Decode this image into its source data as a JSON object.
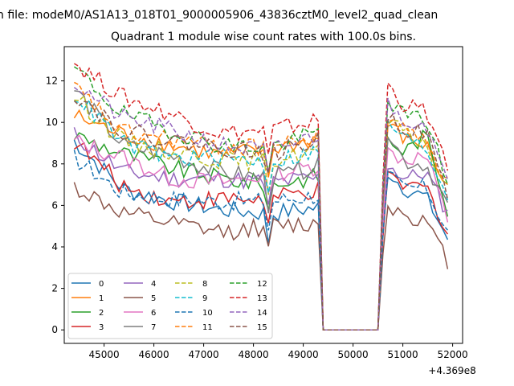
{
  "chart_data": {
    "type": "line",
    "suptitle": "n file: modeM0/AS1A13_018T01_9000005906_43836cztM0_level2_quad_clean",
    "title": "Quadrant 1 module wise count rates with 100.0s bins.",
    "xlabel": "",
    "ylabel": "",
    "x_offset_label": "+4.369e8",
    "xlim": [
      44200,
      52200
    ],
    "ylim": [
      -0.65,
      13.65
    ],
    "x_ticks": [
      45000,
      46000,
      47000,
      48000,
      49000,
      50000,
      51000,
      52000
    ],
    "x_tick_labels": [
      "45000",
      "46000",
      "47000",
      "48000",
      "49000",
      "50000",
      "51000",
      "52000"
    ],
    "y_ticks": [
      0,
      2,
      4,
      6,
      8,
      10,
      12
    ],
    "y_tick_labels": [
      "0",
      "2",
      "4",
      "6",
      "8",
      "10",
      "12"
    ],
    "grid": false,
    "legend_position": "lower-left",
    "legend_columns": 4,
    "segments": [
      {
        "x_start": 44400,
        "x_end": 49300,
        "step": 100
      },
      {
        "x_start": 49400,
        "x_end": 50500,
        "step": 100,
        "constant": 0
      },
      {
        "x_start": 50600,
        "x_end": 51900,
        "step": 100
      }
    ],
    "series": [
      {
        "name": "0",
        "color": "#1f77b4",
        "dash": "solid",
        "level_a": [
          9.1,
          6.8,
          6.2,
          5.8,
          5.6,
          5.9
        ],
        "level_b": [
          7.9,
          6.8,
          6.4,
          4.4
        ]
      },
      {
        "name": "1",
        "color": "#ff7f0e",
        "dash": "solid",
        "level_a": [
          10.3,
          9.4,
          8.9,
          8.4,
          8.7,
          9.2
        ],
        "level_b": [
          10.1,
          9.2,
          8.9,
          6.8
        ]
      },
      {
        "name": "2",
        "color": "#2ca02c",
        "dash": "solid",
        "level_a": [
          9.4,
          8.5,
          7.8,
          7.3,
          7.0,
          7.4
        ],
        "level_b": [
          9.3,
          8.6,
          9.4,
          5.8
        ]
      },
      {
        "name": "3",
        "color": "#d62728",
        "dash": "solid",
        "level_a": [
          9.1,
          6.9,
          6.2,
          6.3,
          6.3,
          6.7
        ],
        "level_b": [
          7.4,
          6.9,
          6.9,
          4.7
        ]
      },
      {
        "name": "4",
        "color": "#9467bd",
        "dash": "solid",
        "level_a": [
          9.4,
          7.6,
          7.3,
          7.3,
          7.1,
          7.3
        ],
        "level_b": [
          8.2,
          7.3,
          7.6,
          5.6
        ]
      },
      {
        "name": "5",
        "color": "#8c564b",
        "dash": "solid",
        "level_a": [
          6.9,
          5.6,
          5.1,
          4.7,
          5.0,
          5.1
        ],
        "level_b": [
          6.1,
          5.6,
          5.2,
          3.3
        ]
      },
      {
        "name": "6",
        "color": "#e377c2",
        "dash": "solid",
        "level_a": [
          9.1,
          8.3,
          7.3,
          7.1,
          7.5,
          7.9
        ],
        "level_b": [
          8.7,
          8.2,
          8.4,
          5.3
        ]
      },
      {
        "name": "7",
        "color": "#7f7f7f",
        "dash": "solid",
        "level_a": [
          11.6,
          8.9,
          8.4,
          7.6,
          7.3,
          7.9
        ],
        "level_b": [
          10.1,
          8.1,
          8.0,
          6.0
        ]
      },
      {
        "name": "8",
        "color": "#bcbd22",
        "dash": "dashed",
        "level_a": [
          11.3,
          9.1,
          8.6,
          8.2,
          8.1,
          8.7
        ],
        "level_b": [
          10.3,
          9.4,
          9.0,
          6.6
        ]
      },
      {
        "name": "9",
        "color": "#17becf",
        "dash": "dashed",
        "level_a": [
          11.4,
          9.0,
          8.3,
          8.3,
          8.1,
          8.6
        ],
        "level_b": [
          10.3,
          9.2,
          8.8,
          6.4
        ]
      },
      {
        "name": "10",
        "color": "#1f77b4",
        "dash": "dashed",
        "level_a": [
          8.3,
          6.6,
          6.3,
          6.2,
          6.2,
          6.5
        ],
        "level_b": [
          7.6,
          6.8,
          6.9,
          4.7
        ]
      },
      {
        "name": "11",
        "color": "#ff7f0e",
        "dash": "dashed",
        "level_a": [
          11.7,
          9.5,
          9.2,
          8.8,
          8.8,
          9.3
        ],
        "level_b": [
          10.6,
          9.6,
          9.3,
          7.0
        ]
      },
      {
        "name": "12",
        "color": "#2ca02c",
        "dash": "dashed",
        "level_a": [
          12.6,
          10.4,
          9.6,
          8.9,
          8.8,
          9.5
        ],
        "level_b": [
          11.4,
          10.3,
          10.2,
          7.2
        ]
      },
      {
        "name": "13",
        "color": "#d62728",
        "dash": "dashed",
        "level_a": [
          12.9,
          11.2,
          10.4,
          9.5,
          9.6,
          10.1
        ],
        "level_b": [
          12.1,
          10.8,
          10.6,
          7.6
        ]
      },
      {
        "name": "14",
        "color": "#9467bd",
        "dash": "dashed",
        "level_a": [
          11.9,
          10.2,
          9.6,
          8.9,
          8.6,
          9.4
        ],
        "level_b": [
          11.1,
          10.1,
          10.0,
          6.9
        ]
      },
      {
        "name": "15",
        "color": "#8c564b",
        "dash": "dashed",
        "level_a": [
          11.4,
          9.6,
          9.1,
          8.8,
          8.5,
          9.1
        ],
        "level_b": [
          10.6,
          9.7,
          9.5,
          6.5
        ]
      }
    ]
  }
}
